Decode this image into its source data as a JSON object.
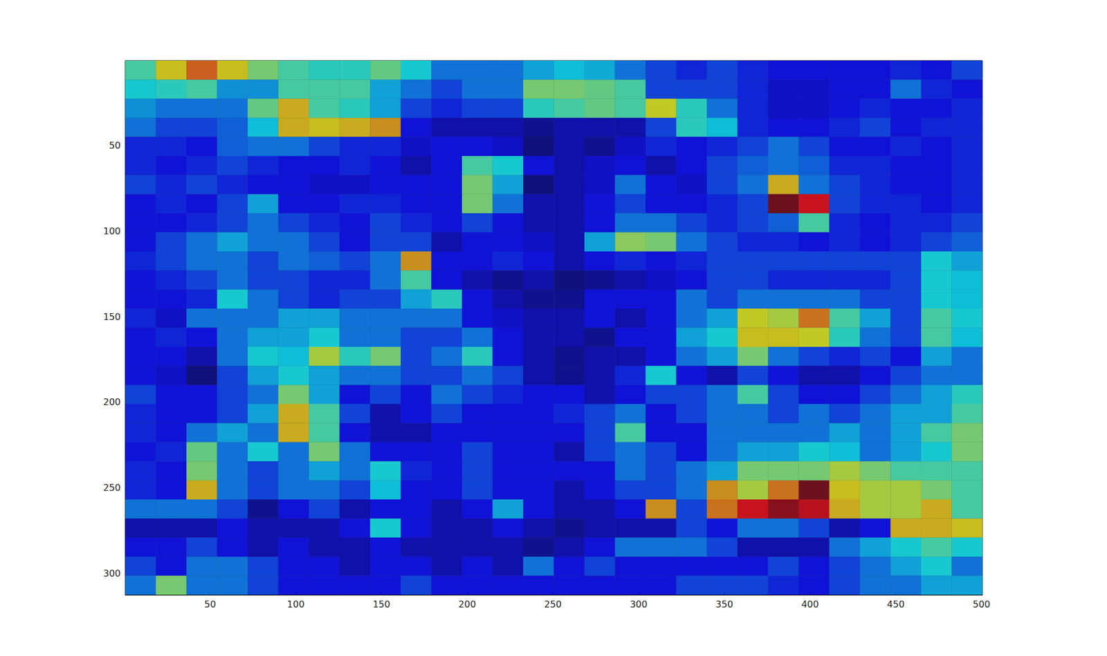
{
  "chart_data": {
    "type": "heatmap",
    "xlim": [
      0.5,
      500.5
    ],
    "ylim": [
      0.5,
      312.5
    ],
    "xticks": [
      50,
      100,
      150,
      200,
      250,
      300,
      350,
      400,
      450,
      500
    ],
    "yticks": [
      50,
      100,
      150,
      200,
      250,
      300
    ],
    "cells": [
      [
        0.45,
        0.6,
        0.7,
        0.6,
        0.5,
        0.45,
        0.42,
        0.42,
        0.48,
        0.4,
        0.3,
        0.3,
        0.3,
        0.35,
        0.38,
        0.36,
        0.3,
        0.25,
        0.22,
        0.25,
        0.22,
        0.2,
        0.2,
        0.2,
        0.2,
        0.22,
        0.2,
        0.25
      ],
      [
        0.4,
        0.42,
        0.45,
        0.33,
        0.33,
        0.45,
        0.45,
        0.45,
        0.35,
        0.3,
        0.25,
        0.3,
        0.3,
        0.5,
        0.5,
        0.48,
        0.45,
        0.25,
        0.25,
        0.25,
        0.22,
        0.18,
        0.18,
        0.2,
        0.2,
        0.3,
        0.22,
        0.2
      ],
      [
        0.33,
        0.3,
        0.3,
        0.3,
        0.48,
        0.62,
        0.45,
        0.42,
        0.35,
        0.25,
        0.22,
        0.25,
        0.25,
        0.42,
        0.45,
        0.48,
        0.45,
        0.58,
        0.42,
        0.3,
        0.22,
        0.18,
        0.18,
        0.2,
        0.22,
        0.2,
        0.2,
        0.22
      ],
      [
        0.3,
        0.25,
        0.25,
        0.28,
        0.38,
        0.62,
        0.6,
        0.62,
        0.65,
        0.2,
        0.15,
        0.15,
        0.15,
        0.12,
        0.15,
        0.15,
        0.15,
        0.25,
        0.42,
        0.38,
        0.22,
        0.2,
        0.2,
        0.22,
        0.25,
        0.2,
        0.22,
        0.22
      ],
      [
        0.22,
        0.22,
        0.2,
        0.28,
        0.3,
        0.3,
        0.25,
        0.22,
        0.22,
        0.18,
        0.2,
        0.2,
        0.18,
        0.1,
        0.15,
        0.12,
        0.18,
        0.22,
        0.2,
        0.22,
        0.25,
        0.3,
        0.25,
        0.2,
        0.2,
        0.22,
        0.2,
        0.22
      ],
      [
        0.22,
        0.2,
        0.22,
        0.25,
        0.22,
        0.2,
        0.2,
        0.22,
        0.2,
        0.15,
        0.2,
        0.45,
        0.4,
        0.2,
        0.15,
        0.18,
        0.2,
        0.15,
        0.2,
        0.25,
        0.28,
        0.3,
        0.28,
        0.22,
        0.22,
        0.2,
        0.2,
        0.22
      ],
      [
        0.25,
        0.22,
        0.25,
        0.22,
        0.2,
        0.2,
        0.18,
        0.18,
        0.2,
        0.2,
        0.2,
        0.5,
        0.35,
        0.1,
        0.15,
        0.18,
        0.3,
        0.2,
        0.18,
        0.25,
        0.3,
        0.62,
        0.3,
        0.25,
        0.22,
        0.2,
        0.2,
        0.22
      ],
      [
        0.2,
        0.22,
        0.2,
        0.25,
        0.35,
        0.2,
        0.2,
        0.22,
        0.22,
        0.2,
        0.2,
        0.5,
        0.3,
        0.15,
        0.15,
        0.2,
        0.25,
        0.2,
        0.2,
        0.22,
        0.25,
        0.88,
        0.78,
        0.25,
        0.22,
        0.22,
        0.2,
        0.22
      ],
      [
        0.2,
        0.2,
        0.22,
        0.25,
        0.3,
        0.25,
        0.22,
        0.2,
        0.25,
        0.22,
        0.2,
        0.25,
        0.2,
        0.15,
        0.15,
        0.2,
        0.3,
        0.3,
        0.25,
        0.22,
        0.25,
        0.28,
        0.45,
        0.22,
        0.2,
        0.22,
        0.22,
        0.25
      ],
      [
        0.2,
        0.25,
        0.3,
        0.35,
        0.3,
        0.3,
        0.25,
        0.2,
        0.25,
        0.25,
        0.15,
        0.2,
        0.2,
        0.18,
        0.15,
        0.35,
        0.52,
        0.5,
        0.3,
        0.25,
        0.22,
        0.22,
        0.2,
        0.22,
        0.2,
        0.22,
        0.25,
        0.28
      ],
      [
        0.22,
        0.25,
        0.3,
        0.3,
        0.25,
        0.3,
        0.28,
        0.25,
        0.3,
        0.65,
        0.2,
        0.2,
        0.22,
        0.2,
        0.15,
        0.2,
        0.22,
        0.2,
        0.22,
        0.25,
        0.25,
        0.25,
        0.25,
        0.25,
        0.25,
        0.25,
        0.4,
        0.35
      ],
      [
        0.2,
        0.22,
        0.25,
        0.3,
        0.25,
        0.25,
        0.22,
        0.22,
        0.3,
        0.45,
        0.2,
        0.15,
        0.12,
        0.15,
        0.1,
        0.12,
        0.15,
        0.18,
        0.2,
        0.25,
        0.25,
        0.22,
        0.22,
        0.22,
        0.22,
        0.25,
        0.4,
        0.38
      ],
      [
        0.2,
        0.2,
        0.22,
        0.4,
        0.3,
        0.25,
        0.22,
        0.25,
        0.25,
        0.35,
        0.42,
        0.2,
        0.15,
        0.12,
        0.12,
        0.2,
        0.2,
        0.2,
        0.3,
        0.25,
        0.3,
        0.3,
        0.3,
        0.3,
        0.25,
        0.25,
        0.4,
        0.38
      ],
      [
        0.22,
        0.18,
        0.3,
        0.3,
        0.3,
        0.35,
        0.35,
        0.3,
        0.3,
        0.3,
        0.3,
        0.2,
        0.18,
        0.15,
        0.15,
        0.2,
        0.15,
        0.2,
        0.3,
        0.35,
        0.58,
        0.55,
        0.68,
        0.45,
        0.35,
        0.25,
        0.45,
        0.4
      ],
      [
        0.2,
        0.22,
        0.2,
        0.3,
        0.35,
        0.35,
        0.4,
        0.3,
        0.3,
        0.25,
        0.25,
        0.3,
        0.2,
        0.15,
        0.15,
        0.12,
        0.2,
        0.2,
        0.35,
        0.4,
        0.6,
        0.6,
        0.58,
        0.42,
        0.3,
        0.25,
        0.45,
        0.38
      ],
      [
        0.2,
        0.2,
        0.15,
        0.3,
        0.4,
        0.38,
        0.55,
        0.42,
        0.5,
        0.25,
        0.3,
        0.42,
        0.2,
        0.15,
        0.12,
        0.15,
        0.15,
        0.2,
        0.3,
        0.35,
        0.5,
        0.3,
        0.25,
        0.22,
        0.25,
        0.2,
        0.35,
        0.3
      ],
      [
        0.2,
        0.18,
        0.1,
        0.25,
        0.35,
        0.4,
        0.35,
        0.3,
        0.3,
        0.25,
        0.25,
        0.3,
        0.25,
        0.15,
        0.12,
        0.15,
        0.22,
        0.4,
        0.2,
        0.15,
        0.25,
        0.2,
        0.15,
        0.15,
        0.2,
        0.25,
        0.3,
        0.3
      ],
      [
        0.25,
        0.2,
        0.2,
        0.25,
        0.3,
        0.5,
        0.35,
        0.2,
        0.25,
        0.2,
        0.3,
        0.25,
        0.22,
        0.2,
        0.2,
        0.15,
        0.2,
        0.25,
        0.25,
        0.3,
        0.45,
        0.25,
        0.2,
        0.2,
        0.25,
        0.3,
        0.35,
        0.42
      ],
      [
        0.22,
        0.2,
        0.2,
        0.25,
        0.35,
        0.62,
        0.45,
        0.25,
        0.15,
        0.2,
        0.25,
        0.2,
        0.2,
        0.2,
        0.22,
        0.25,
        0.3,
        0.2,
        0.25,
        0.3,
        0.3,
        0.25,
        0.3,
        0.25,
        0.3,
        0.35,
        0.35,
        0.45
      ],
      [
        0.22,
        0.2,
        0.3,
        0.35,
        0.3,
        0.62,
        0.45,
        0.2,
        0.15,
        0.15,
        0.2,
        0.2,
        0.2,
        0.2,
        0.2,
        0.25,
        0.45,
        0.2,
        0.2,
        0.3,
        0.3,
        0.3,
        0.3,
        0.35,
        0.3,
        0.35,
        0.45,
        0.5
      ],
      [
        0.2,
        0.22,
        0.48,
        0.3,
        0.4,
        0.3,
        0.5,
        0.3,
        0.2,
        0.2,
        0.2,
        0.25,
        0.2,
        0.2,
        0.15,
        0.25,
        0.3,
        0.25,
        0.2,
        0.3,
        0.35,
        0.35,
        0.4,
        0.38,
        0.3,
        0.35,
        0.4,
        0.5
      ],
      [
        0.22,
        0.2,
        0.5,
        0.3,
        0.25,
        0.3,
        0.35,
        0.3,
        0.4,
        0.22,
        0.2,
        0.25,
        0.2,
        0.2,
        0.2,
        0.2,
        0.3,
        0.25,
        0.3,
        0.35,
        0.5,
        0.5,
        0.5,
        0.55,
        0.5,
        0.45,
        0.45,
        0.45
      ],
      [
        0.22,
        0.2,
        0.62,
        0.3,
        0.25,
        0.3,
        0.3,
        0.25,
        0.38,
        0.2,
        0.2,
        0.25,
        0.2,
        0.2,
        0.15,
        0.2,
        0.25,
        0.25,
        0.3,
        0.65,
        0.55,
        0.68,
        0.88,
        0.6,
        0.55,
        0.55,
        0.5,
        0.45
      ],
      [
        0.3,
        0.3,
        0.3,
        0.25,
        0.12,
        0.2,
        0.25,
        0.15,
        0.2,
        0.2,
        0.15,
        0.2,
        0.35,
        0.2,
        0.15,
        0.15,
        0.2,
        0.65,
        0.25,
        0.68,
        0.78,
        0.85,
        0.8,
        0.62,
        0.55,
        0.55,
        0.62,
        0.45
      ],
      [
        0.15,
        0.15,
        0.15,
        0.2,
        0.15,
        0.15,
        0.15,
        0.2,
        0.4,
        0.2,
        0.15,
        0.15,
        0.2,
        0.15,
        0.12,
        0.15,
        0.15,
        0.15,
        0.25,
        0.2,
        0.3,
        0.3,
        0.25,
        0.15,
        0.2,
        0.62,
        0.62,
        0.6
      ],
      [
        0.2,
        0.2,
        0.25,
        0.2,
        0.15,
        0.2,
        0.15,
        0.15,
        0.2,
        0.15,
        0.15,
        0.15,
        0.15,
        0.12,
        0.15,
        0.2,
        0.3,
        0.3,
        0.3,
        0.25,
        0.15,
        0.15,
        0.15,
        0.3,
        0.35,
        0.4,
        0.45,
        0.4
      ],
      [
        0.25,
        0.2,
        0.3,
        0.3,
        0.25,
        0.2,
        0.2,
        0.15,
        0.2,
        0.2,
        0.15,
        0.2,
        0.15,
        0.3,
        0.2,
        0.25,
        0.2,
        0.2,
        0.2,
        0.2,
        0.2,
        0.25,
        0.2,
        0.25,
        0.3,
        0.35,
        0.4,
        0.3
      ],
      [
        0.3,
        0.5,
        0.3,
        0.3,
        0.25,
        0.2,
        0.2,
        0.2,
        0.2,
        0.25,
        0.2,
        0.2,
        0.2,
        0.2,
        0.2,
        0.2,
        0.2,
        0.2,
        0.25,
        0.25,
        0.25,
        0.22,
        0.2,
        0.25,
        0.3,
        0.3,
        0.35,
        0.35
      ]
    ]
  }
}
